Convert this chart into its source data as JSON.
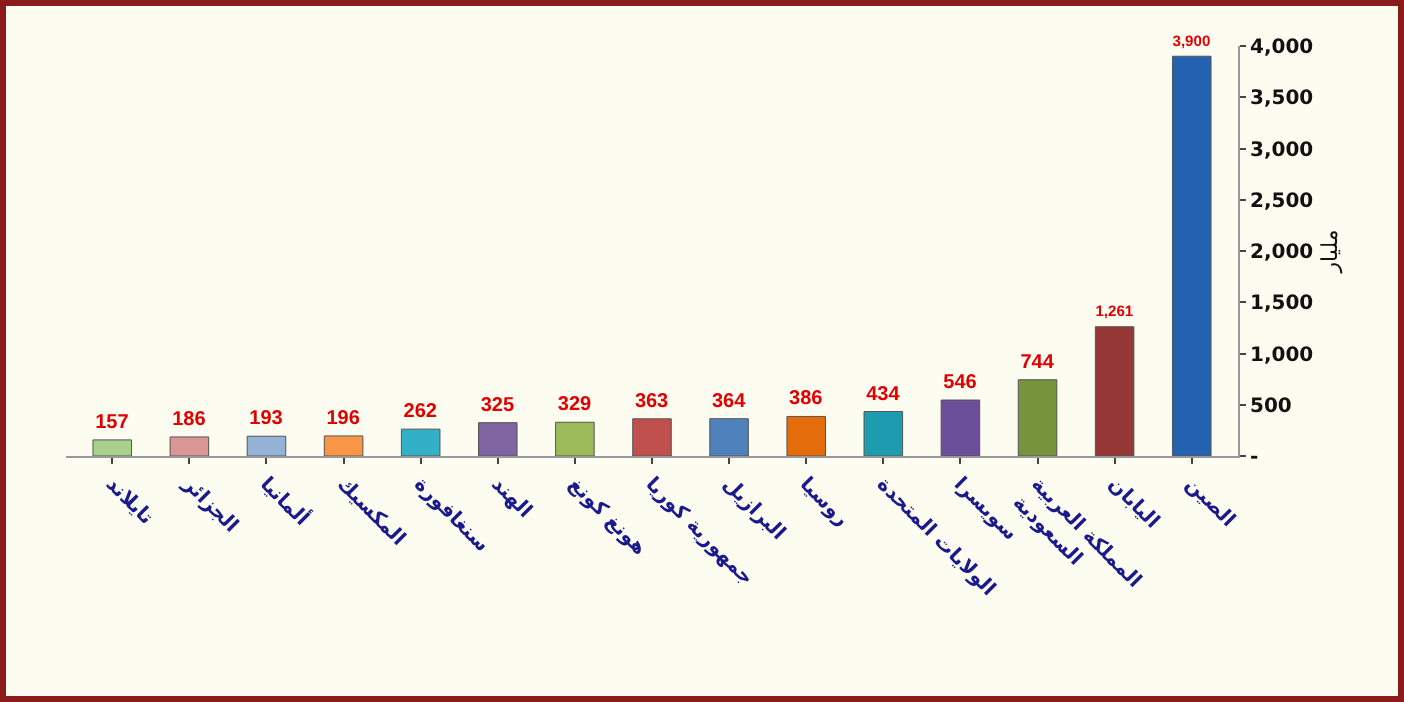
{
  "chart_data": {
    "type": "bar",
    "ylabel": "مليار",
    "categories": [
      "تايلاند",
      "الجزائر",
      "ألمانيا",
      "المكسيك",
      "سنغافورة",
      "الهند",
      "هونغ كونغ",
      "جمهورية كوريا",
      "البرازيل",
      "روسيا",
      "الولايات المتحدة",
      "سويسرا",
      "المملكة العربية السعودية",
      "اليابان",
      "الصين"
    ],
    "values": [
      157,
      186,
      193,
      196,
      262,
      325,
      329,
      363,
      364,
      386,
      434,
      546,
      744,
      1261,
      3900
    ],
    "colors": [
      "#a9d18e",
      "#d99694",
      "#95b3d7",
      "#f79646",
      "#31b0c8",
      "#8064a2",
      "#9bbb59",
      "#c0504d",
      "#4f81bd",
      "#e46c0a",
      "#1f9bb0",
      "#6b4f9a",
      "#77933c",
      "#953735",
      "#2462b0"
    ],
    "ylim": [
      0,
      4000
    ],
    "yticks": [
      {
        "value": 0,
        "label": "-"
      },
      {
        "value": 500,
        "label": "500"
      },
      {
        "value": 1000,
        "label": "1,000"
      },
      {
        "value": 1500,
        "label": "1,500"
      },
      {
        "value": 2000,
        "label": "2,000"
      },
      {
        "value": 2500,
        "label": "2,500"
      },
      {
        "value": 3000,
        "label": "3,000"
      },
      {
        "value": 3500,
        "label": "3,500"
      },
      {
        "value": 4000,
        "label": "4,000"
      }
    ],
    "value_labels": [
      "157",
      "186",
      "193",
      "196",
      "262",
      "325",
      "329",
      "363",
      "364",
      "386",
      "434",
      "546",
      "744",
      "1,261",
      "3,900"
    ],
    "grid": false
  }
}
